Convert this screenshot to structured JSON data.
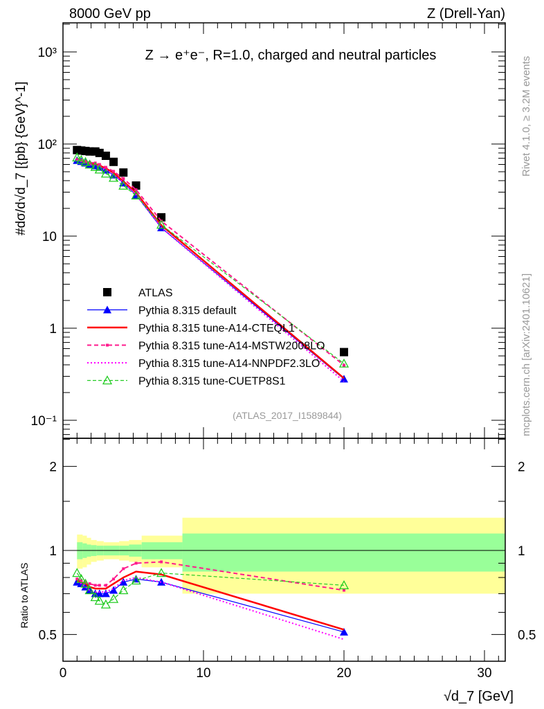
{
  "header": {
    "left": "8000 GeV pp",
    "right": "Z (Drell-Yan)"
  },
  "side_labels": {
    "rivet": "Rivet 4.1.0, ≥ 3.2M events",
    "mcplots": "mcplots.cern.ch [arXiv:2401.10621]"
  },
  "chart_data": [
    {
      "type": "scatter",
      "title": "Z → e⁺e⁻, R=1.0, charged and neutral particles",
      "analysis_label": "(ATLAS_2017_I1589844)",
      "ylabel": "#dσ/d√d_7 [{pb} {GeV}^-1]",
      "xlabel": "√d_7 [GeV]",
      "yscale": "log",
      "xlim": [
        0,
        32
      ],
      "ylim": [
        0.06,
        2000
      ],
      "xticks": [
        "0",
        "10",
        "20",
        "30"
      ],
      "yticks": [
        {
          "v": 0.1,
          "label": "10⁻¹"
        },
        {
          "v": 1,
          "label": "1"
        },
        {
          "v": 10,
          "label": "10"
        },
        {
          "v": 100,
          "label": "10²"
        },
        {
          "v": 1000,
          "label": "10³"
        }
      ],
      "legend_position": "bottom-left",
      "x": [
        1.0,
        1.3,
        1.6,
        1.9,
        2.3,
        2.6,
        3.05,
        3.6,
        4.3,
        5.2,
        7.0,
        20.0
      ],
      "series": [
        {
          "name": "ATLAS",
          "color": "#000000",
          "values": [
            86,
            85,
            84,
            83,
            83,
            80,
            74.5,
            64,
            49,
            35.4,
            16,
            0.55
          ]
        },
        {
          "name": "Pythia 8.315 default",
          "color": "#0000ff",
          "ratio": [
            0.77,
            0.76,
            0.74,
            0.72,
            0.7,
            0.7,
            0.7,
            0.72,
            0.77,
            0.79,
            0.77,
            0.51
          ]
        },
        {
          "name": "Pythia 8.315 tune-A14-CTEQL1",
          "color": "#ff0000",
          "ratio": [
            0.78,
            0.77,
            0.76,
            0.74,
            0.73,
            0.73,
            0.73,
            0.76,
            0.8,
            0.84,
            0.82,
            0.52
          ]
        },
        {
          "name": "Pythia 8.315 tune-A14-MSTW2008LO",
          "color": "#ff1a8c",
          "ratio": [
            0.79,
            0.78,
            0.77,
            0.76,
            0.75,
            0.75,
            0.75,
            0.79,
            0.86,
            0.9,
            0.91,
            0.72
          ]
        },
        {
          "name": "Pythia 8.315 tune-A14-NNPDF2.3LO",
          "color": "#ff00ff",
          "ratio": [
            0.77,
            0.76,
            0.74,
            0.72,
            0.71,
            0.71,
            0.71,
            0.73,
            0.78,
            0.8,
            0.77,
            0.48
          ]
        },
        {
          "name": "Pythia 8.315 tune-CUETP8S1",
          "color": "#22cc22",
          "ratio": [
            0.83,
            0.79,
            0.76,
            0.72,
            0.68,
            0.66,
            0.64,
            0.67,
            0.72,
            0.78,
            0.83,
            0.75
          ]
        }
      ]
    },
    {
      "type": "line",
      "ylabel": "Ratio to ATLAS",
      "yscale": "log",
      "ylim": [
        0.4,
        2.5
      ],
      "yticks": [
        {
          "v": 0.5,
          "label": "0.5"
        },
        {
          "v": 1,
          "label": "1"
        },
        {
          "v": 2,
          "label": "2"
        }
      ],
      "band_edges": [
        1.0,
        1.4,
        1.7,
        2.0,
        2.4,
        2.9,
        4.0,
        4.7,
        5.6,
        8.5,
        31.5
      ],
      "band_total_up": [
        1.14,
        1.13,
        1.11,
        1.09,
        1.08,
        1.07,
        1.08,
        1.09,
        1.13,
        1.31
      ],
      "band_total_lo": [
        0.86,
        0.87,
        0.89,
        0.91,
        0.92,
        0.93,
        0.92,
        0.91,
        0.87,
        0.7
      ],
      "band_stat_up": [
        1.07,
        1.06,
        1.05,
        1.045,
        1.04,
        1.04,
        1.04,
        1.05,
        1.07,
        1.15
      ],
      "band_stat_lo": [
        0.93,
        0.94,
        0.95,
        0.955,
        0.96,
        0.96,
        0.96,
        0.95,
        0.93,
        0.84
      ],
      "band_colors": {
        "total": "#ffff99",
        "stat": "#99ff99"
      }
    }
  ]
}
